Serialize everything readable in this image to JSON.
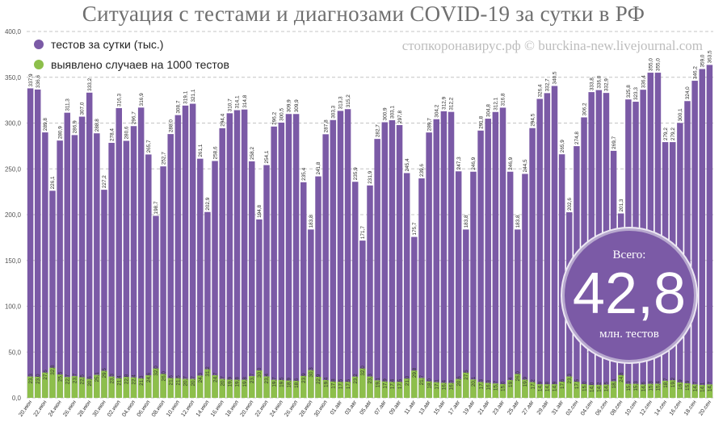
{
  "title": "Ситуация с тестами и диагнозами COVID-19 за сутки в РФ",
  "watermark": "стопкоронавирус.рф © burckina-new.livejournal.com",
  "legend": [
    {
      "label": "тестов за сутки (тыс.)",
      "color": "#7b5aa6"
    },
    {
      "label": "выявлено случаев на 1000 тестов",
      "color": "#8dbf4b"
    }
  ],
  "total_badge": {
    "label": "Всего:",
    "value": "42,8",
    "unit": "млн. тестов"
  },
  "chart_data": {
    "type": "bar",
    "title": "Ситуация с тестами и диагнозами COVID-19 за сутки в РФ",
    "ylim": [
      0,
      400
    ],
    "yticks": [
      "0,0",
      "50,0",
      "100,0",
      "150,0",
      "200,0",
      "250,0",
      "300,0",
      "350,0",
      "400,0"
    ],
    "grid": "horizontal dashed",
    "colors": {
      "tests": "#7b5aa6",
      "cases": "#8dbf4b"
    },
    "categories": [
      "20.июн",
      "21.июн",
      "22.июн",
      "23.июн",
      "24.июн",
      "25.июн",
      "26.июн",
      "27.июн",
      "28.июн",
      "29.июн",
      "30.июн",
      "01.июл",
      "02.июл",
      "03.июл",
      "04.июл",
      "05.июл",
      "06.июл",
      "07.июл",
      "08.июл",
      "09.июл",
      "10.июл",
      "11.июл",
      "12.июл",
      "13.июл",
      "14.июл",
      "15.июл",
      "16.июл",
      "17.июл",
      "18.июл",
      "19.июл",
      "20.июл",
      "21.июл",
      "22.июл",
      "23.июл",
      "24.июл",
      "25.июл",
      "26.июл",
      "27.июл",
      "28.июл",
      "29.июл",
      "30.июл",
      "31.июл",
      "01.авг",
      "02.авг",
      "03.авг",
      "04.авг",
      "05.авг",
      "06.авг",
      "07.авг",
      "08.авг",
      "09.авг",
      "10.авг",
      "11.авг",
      "12.авг",
      "13.авг",
      "14.авг",
      "15.авг",
      "16.авг",
      "17.авг",
      "18.авг",
      "19.авг",
      "20.авг",
      "21.авг",
      "22.авг",
      "23.авг",
      "24.авг",
      "25.авг",
      "26.авг",
      "27.авг",
      "28.авг",
      "29.авг",
      "30.авг",
      "31.авг",
      "01.сен",
      "02.сен",
      "03.сен",
      "04.сен",
      "05.сен",
      "06.сен",
      "07.сен",
      "08.сен",
      "09.сен",
      "10.сен",
      "11.сен",
      "12.сен",
      "13.сен",
      "14.сен",
      "15.сен",
      "16.сен",
      "17.сен",
      "18.сен",
      "19.сен",
      "20.сен"
    ],
    "series": [
      {
        "name": "тестов за сутки (тыс.)",
        "values": [
          337.9,
          336.6,
          289.8,
          226.1,
          280.9,
          311.3,
          286.9,
          307.0,
          333.2,
          288.8,
          227.2,
          278.4,
          316.3,
          280.6,
          296.7,
          316.9,
          265.7,
          198.7,
          252.7,
          288.0,
          308.7,
          319.1,
          321.1,
          261.1,
          202.9,
          258.6,
          294.4,
          310.7,
          314.1,
          314.8,
          258.2,
          194.8,
          254.1,
          296.2,
          300.5,
          309.9,
          309.9,
          235.4,
          183.8,
          241.8,
          287.8,
          303.3,
          313.3,
          315.2,
          235.9,
          171.7,
          231.9,
          282.7,
          300.9,
          303.1,
          297.8,
          245.4,
          175.7,
          239.6,
          289.7,
          304.2,
          312.9,
          312.2,
          247.3,
          183.8,
          246.9,
          291.8,
          304.8,
          312.1,
          316.8,
          246.9,
          183.8,
          244.5,
          294.5,
          326.4,
          332.7,
          340.5,
          265.9,
          202.6,
          274.8,
          306.2,
          333.8,
          336.0,
          332.9,
          269.7,
          201.3,
          325.8,
          323.3,
          336.4,
          355.0,
          355.0,
          279.2,
          279.2,
          300.1,
          324.0,
          346.2,
          359.0,
          363.5
        ]
      },
      {
        "name": "выявлено случаев на 1000 тестов",
        "values": [
          23.3,
          23.0,
          27.6,
          32.8,
          25.5,
          22.7,
          23.7,
          22.5,
          20.6,
          25.1,
          29.5,
          23.3,
          21.4,
          22.8,
          22.4,
          21.3,
          24.6,
          32.0,
          26.0,
          21.6,
          21.5,
          20.7,
          20.7,
          24.3,
          31.2,
          24.7,
          20.7,
          19.9,
          19.8,
          19.8,
          23.7,
          30.0,
          23.4,
          19.7,
          19.5,
          18.9,
          18.6,
          23.9,
          30.3,
          22.9,
          19.4,
          17.8,
          17.5,
          17.5,
          23.2,
          32.0,
          23.3,
          19.1,
          17.9,
          17.4,
          17.5,
          21.0,
          29.8,
          21.7,
          18.0,
          17.1,
          16.4,
          16.3,
          20.6,
          27.5,
          20.1,
          17.3,
          16.3,
          15.7,
          15.0,
          19.4,
          26.0,
          19.9,
          17.2,
          14.9,
          14.8,
          14.9,
          17.6,
          23.3,
          17.5,
          15.0,
          14.0,
          14.2,
          14.5,
          18.1,
          24.8,
          15.3,
          15.3,
          14.6,
          15.3,
          15.4,
          18.7,
          19.2,
          16.9,
          15.9,
          14.7,
          14.1,
          14.7
        ]
      }
    ]
  }
}
